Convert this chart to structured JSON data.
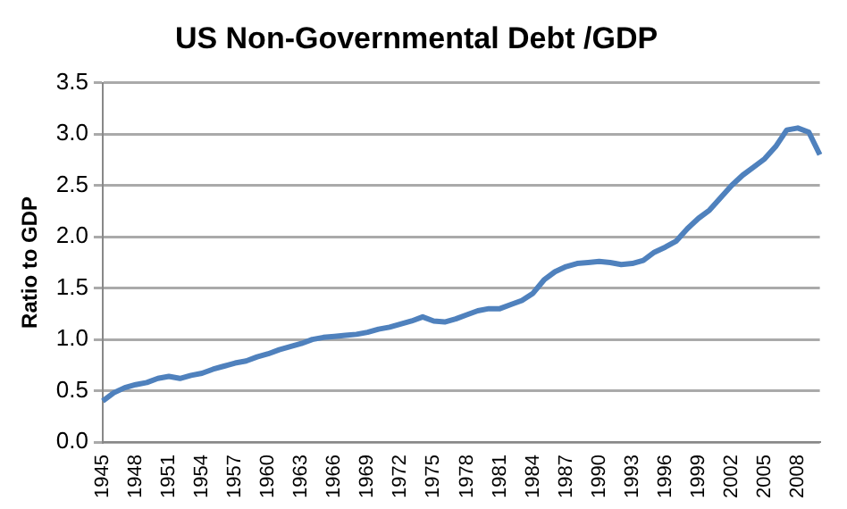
{
  "chart_data": {
    "type": "line",
    "title": "US Non-Governmental Debt /GDP",
    "ylabel": "Ratio to GDP",
    "categories": [
      "1945",
      null,
      null,
      "1948",
      null,
      null,
      "1951",
      null,
      null,
      "1954",
      null,
      null,
      "1957",
      null,
      null,
      "1960",
      null,
      null,
      "1963",
      null,
      null,
      "1966",
      null,
      null,
      "1969",
      null,
      null,
      "1972",
      null,
      null,
      "1975",
      null,
      null,
      "1978",
      null,
      null,
      "1981",
      null,
      null,
      "1984",
      null,
      null,
      "1987",
      null,
      null,
      "1990",
      null,
      null,
      "1993",
      null,
      null,
      "1996",
      null,
      null,
      "1999",
      null,
      null,
      "2002",
      null,
      null,
      "2005",
      null,
      null,
      "2008",
      null,
      null
    ],
    "series": [
      {
        "color": "#4f81bd",
        "values": [
          0.4,
          0.48,
          0.53,
          0.56,
          0.58,
          0.62,
          0.64,
          0.62,
          0.65,
          0.67,
          0.71,
          0.74,
          0.77,
          0.79,
          0.83,
          0.86,
          0.9,
          0.93,
          0.96,
          1.0,
          1.02,
          1.03,
          1.04,
          1.05,
          1.07,
          1.1,
          1.12,
          1.15,
          1.18,
          1.22,
          1.18,
          1.17,
          1.2,
          1.24,
          1.28,
          1.3,
          1.3,
          1.34,
          1.38,
          1.45,
          1.58,
          1.66,
          1.71,
          1.74,
          1.75,
          1.76,
          1.75,
          1.73,
          1.74,
          1.77,
          1.85,
          1.9,
          1.96,
          2.08,
          2.18,
          2.26,
          2.38,
          2.5,
          2.6,
          2.68,
          2.76,
          2.88,
          3.04,
          3.06,
          3.02,
          2.8
        ]
      }
    ],
    "ylim": [
      0,
      3.5
    ],
    "yticks": [
      {
        "value": 0,
        "label": "0.0"
      },
      0.5,
      {
        "value": 1,
        "label": "1.0"
      },
      1.5,
      {
        "value": 2,
        "label": "2.0"
      },
      2.5,
      {
        "value": 3,
        "label": "3.0"
      },
      3.5
    ],
    "grid": "y",
    "marker": "none",
    "line_style": "solid",
    "legend": false
  }
}
